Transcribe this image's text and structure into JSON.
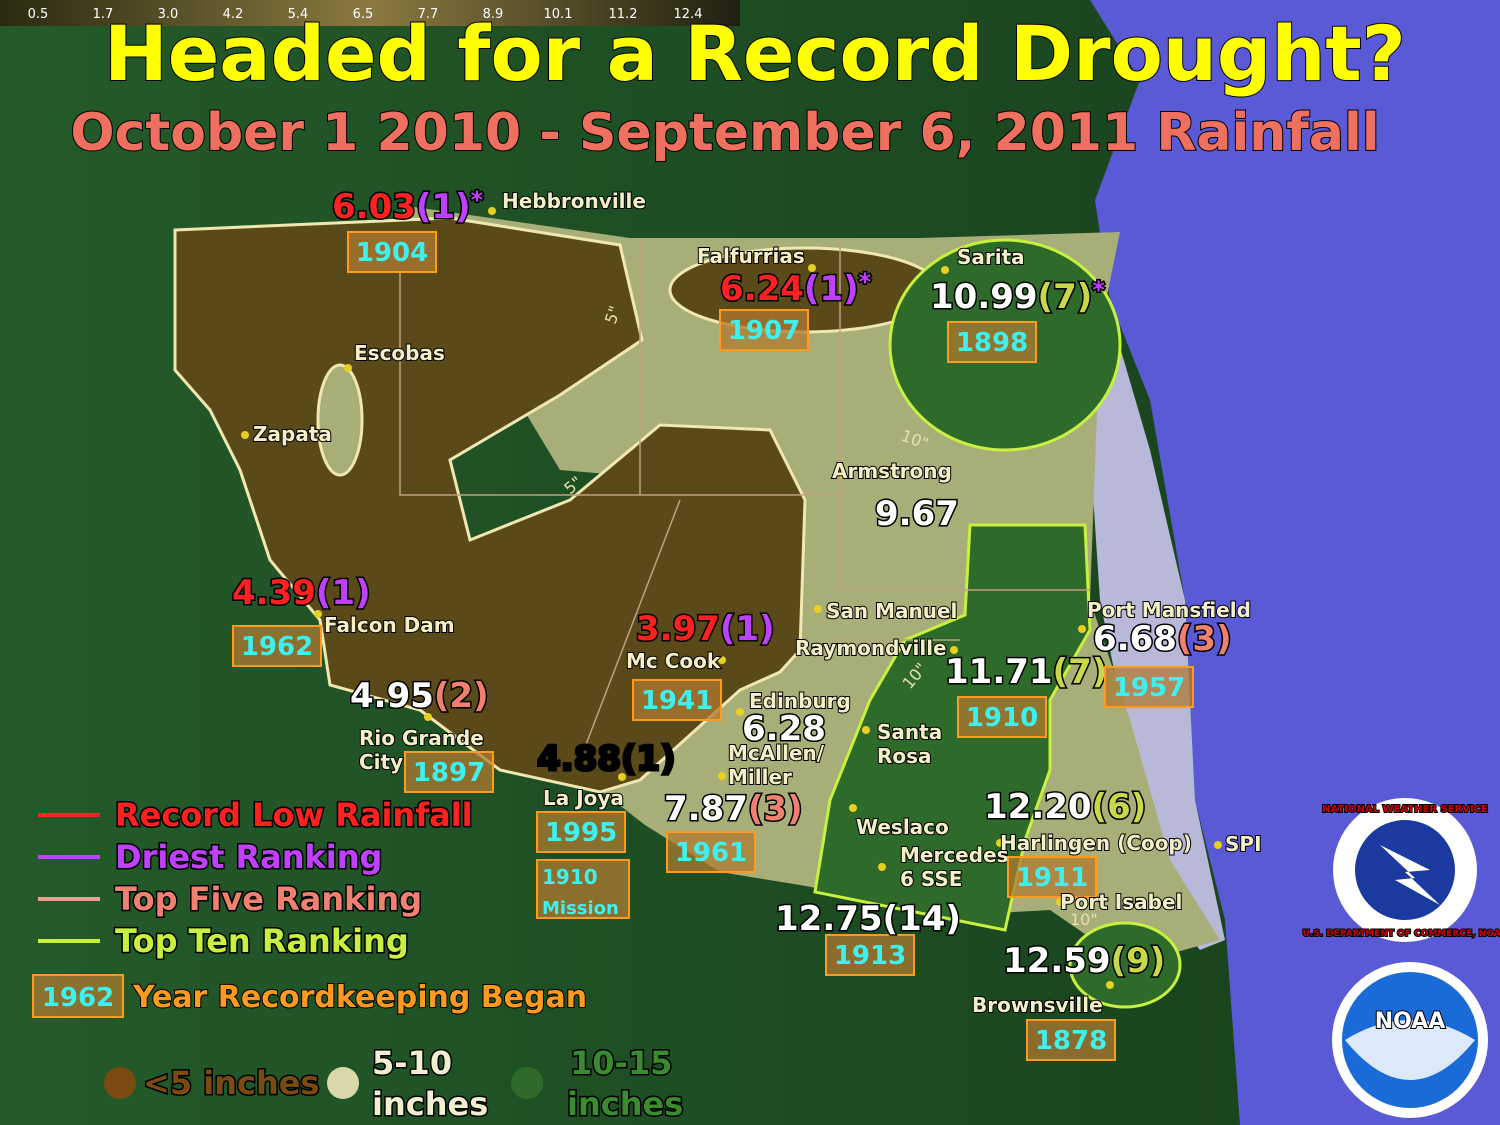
{
  "scale_labels": [
    "0.5",
    "1.7",
    "3.0",
    "4.2",
    "5.4",
    "6.5",
    "7.7",
    "8.9",
    "10.1",
    "11.2",
    "12.4"
  ],
  "header": {
    "title": "Headed for a Record Drought?",
    "subtitle": "October 1 2010 - September 6, 2011 Rainfall"
  },
  "stations": [
    {
      "name": [
        "Hebbronville"
      ],
      "value": "6.03",
      "rank": "(1)",
      "note": "*",
      "year": "1904"
    },
    {
      "name": [
        "Falfurrias"
      ],
      "value": "6.24",
      "rank": "(1)",
      "note": "*",
      "year": "1907"
    },
    {
      "name": [
        "Sarita"
      ],
      "value": "10.99",
      "rank": "(7)",
      "note": "*",
      "year": "1898"
    },
    {
      "name": [
        "Escobas"
      ]
    },
    {
      "name": [
        "Zapata"
      ]
    },
    {
      "name": [
        "Armstrong"
      ],
      "value": "9.67"
    },
    {
      "name": [
        "Falcon Dam"
      ],
      "value": "4.39",
      "rank": "(1)",
      "year": "1962"
    },
    {
      "name": [
        "Rio Grande",
        "City"
      ],
      "value": "4.95",
      "rank": "(2)",
      "year": "1897"
    },
    {
      "name": [
        "Mc Cook"
      ],
      "value": "3.97",
      "rank": "(1)",
      "year": "1941"
    },
    {
      "name": [
        "San Manuel"
      ]
    },
    {
      "name": [
        "Raymondville"
      ],
      "value": "11.71",
      "rank": "(7)",
      "year": "1910"
    },
    {
      "name": [
        "Port Mansfield"
      ],
      "value": "6.68",
      "rank": "(3)",
      "year": "1957"
    },
    {
      "name": [
        "Edinburg"
      ],
      "value": "6.28"
    },
    {
      "name": [
        "McAllen/",
        "Miller"
      ],
      "value": "7.87",
      "rank": "(3)",
      "year": "1961"
    },
    {
      "name": [
        "La Joya"
      ],
      "value": "4.88",
      "rank": "(1)",
      "year": "1995"
    },
    {
      "name": [
        "Mission"
      ],
      "year": "1910"
    },
    {
      "name": [
        "Santa",
        "Rosa"
      ]
    },
    {
      "name": [
        "Weslaco"
      ]
    },
    {
      "name": [
        "Mercedes",
        "6 SSE"
      ],
      "value": "12.75",
      "rank": "(14)",
      "year": "1913"
    },
    {
      "name": [
        "Harlingen (Coop)"
      ],
      "value": "12.20",
      "rank": "(6)",
      "year": "1911"
    },
    {
      "name": [
        "SPI"
      ]
    },
    {
      "name": [
        "Port Isabel"
      ]
    },
    {
      "name": [
        "Brownsville"
      ],
      "value": "12.59",
      "rank": "(9)",
      "year": "1878"
    }
  ],
  "contour_labels": [
    "5\"",
    "5\"",
    "10\"",
    "10\"",
    "10\""
  ],
  "legend": {
    "lines": [
      "Record Low Rainfall",
      "Driest Ranking",
      "Top Five Ranking",
      "Top Ten Ranking"
    ],
    "year_sample": "1962",
    "year_text": "Year Recordkeeping Began",
    "fills": [
      [
        "<5 inches"
      ],
      [
        "5-10",
        "inches"
      ],
      [
        "10-15",
        "inches"
      ]
    ]
  },
  "logos": {
    "nws_top": "NATIONAL WEATHER SERVICE",
    "nws_bottom": "U.S. DEPARTMENT OF COMMERCE, NOAA",
    "noaa": "NOAA"
  }
}
